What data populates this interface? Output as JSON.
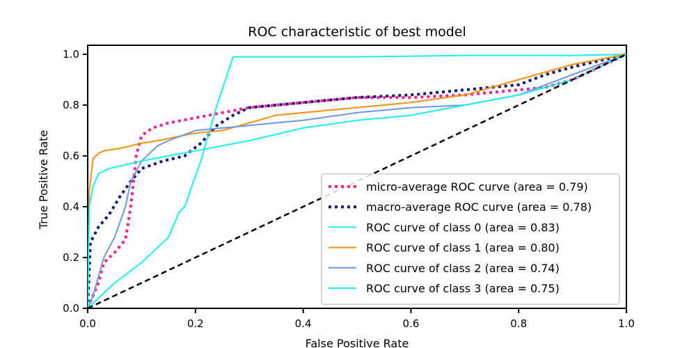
{
  "chart_data": {
    "type": "line",
    "title": "ROC characteristic of best model",
    "xlabel": "False Positive Rate",
    "ylabel": "True Positive Rate",
    "xlim": [
      0.0,
      1.0
    ],
    "ylim": [
      0.0,
      1.0
    ],
    "xticks": [
      "0.0",
      "0.2",
      "0.4",
      "0.6",
      "0.8",
      "1.0"
    ],
    "yticks": [
      "0.0",
      "0.2",
      "0.4",
      "0.6",
      "0.8",
      "1.0"
    ],
    "grid": false,
    "legend_position": "lower-right",
    "series": [
      {
        "name": "micro-average ROC curve (area = 0.79)",
        "color": "#ff1f8e",
        "style": "dotted",
        "x": [
          0.0,
          0.01,
          0.02,
          0.03,
          0.05,
          0.07,
          0.08,
          0.09,
          0.1,
          0.12,
          0.15,
          0.2,
          0.25,
          0.3,
          0.4,
          0.5,
          0.6,
          0.7,
          0.8,
          0.85,
          0.9,
          0.95,
          1.0
        ],
        "y": [
          0.0,
          0.05,
          0.1,
          0.18,
          0.22,
          0.27,
          0.4,
          0.6,
          0.68,
          0.71,
          0.73,
          0.75,
          0.77,
          0.79,
          0.81,
          0.83,
          0.83,
          0.84,
          0.86,
          0.87,
          0.9,
          0.95,
          1.0
        ]
      },
      {
        "name": "macro-average ROC curve (area = 0.78)",
        "color": "#0d1a78",
        "style": "dotted",
        "x": [
          0.0,
          0.005,
          0.02,
          0.04,
          0.06,
          0.08,
          0.1,
          0.14,
          0.18,
          0.21,
          0.24,
          0.27,
          0.3,
          0.4,
          0.5,
          0.6,
          0.7,
          0.8,
          0.85,
          0.9,
          1.0
        ],
        "y": [
          0.0,
          0.26,
          0.32,
          0.37,
          0.44,
          0.5,
          0.55,
          0.58,
          0.6,
          0.65,
          0.72,
          0.76,
          0.79,
          0.81,
          0.83,
          0.84,
          0.86,
          0.88,
          0.92,
          0.95,
          1.0
        ]
      },
      {
        "name": "ROC curve of class 0 (area = 0.83)",
        "color": "#18f0f0",
        "style": "solid",
        "x": [
          0.0,
          0.05,
          0.1,
          0.15,
          0.17,
          0.18,
          0.21,
          0.24,
          0.27,
          0.3,
          0.5,
          0.7,
          0.8,
          0.9,
          1.0
        ],
        "y": [
          0.0,
          0.1,
          0.18,
          0.28,
          0.38,
          0.4,
          0.58,
          0.8,
          0.99,
          0.99,
          0.99,
          0.995,
          0.995,
          0.995,
          1.0
        ]
      },
      {
        "name": "ROC curve of class 1 (area = 0.80)",
        "color": "#f5900f",
        "style": "solid",
        "x": [
          0.0,
          0.003,
          0.01,
          0.02,
          0.03,
          0.06,
          0.1,
          0.13,
          0.2,
          0.25,
          0.3,
          0.35,
          0.4,
          0.5,
          0.6,
          0.7,
          0.8,
          0.85,
          0.9,
          1.0
        ],
        "y": [
          0.0,
          0.46,
          0.59,
          0.61,
          0.62,
          0.63,
          0.65,
          0.66,
          0.69,
          0.7,
          0.73,
          0.76,
          0.77,
          0.79,
          0.81,
          0.84,
          0.9,
          0.93,
          0.96,
          1.0
        ]
      },
      {
        "name": "ROC curve of class 2 (area = 0.74)",
        "color": "#6d96e6",
        "style": "solid",
        "x": [
          0.0,
          0.01,
          0.03,
          0.05,
          0.07,
          0.08,
          0.1,
          0.13,
          0.15,
          0.2,
          0.3,
          0.4,
          0.5,
          0.6,
          0.7,
          0.8,
          0.85,
          0.9,
          0.95,
          1.0
        ],
        "y": [
          0.0,
          0.05,
          0.2,
          0.28,
          0.4,
          0.5,
          0.58,
          0.64,
          0.66,
          0.7,
          0.72,
          0.74,
          0.77,
          0.79,
          0.8,
          0.84,
          0.88,
          0.92,
          0.96,
          1.0
        ]
      },
      {
        "name": "ROC curve of class 3 (area = 0.75)",
        "color": "#18f0f0",
        "style": "solid",
        "x": [
          0.0,
          0.003,
          0.01,
          0.02,
          0.04,
          0.06,
          0.1,
          0.15,
          0.2,
          0.3,
          0.4,
          0.5,
          0.6,
          0.7,
          0.8,
          0.85,
          0.9,
          1.0
        ],
        "y": [
          0.0,
          0.4,
          0.48,
          0.53,
          0.55,
          0.56,
          0.58,
          0.6,
          0.62,
          0.66,
          0.71,
          0.74,
          0.76,
          0.8,
          0.84,
          0.87,
          0.9,
          1.0
        ]
      },
      {
        "name": "",
        "color": "#000000",
        "style": "dashed",
        "legend": false,
        "x": [
          0.0,
          1.0
        ],
        "y": [
          0.0,
          1.0
        ]
      }
    ]
  }
}
